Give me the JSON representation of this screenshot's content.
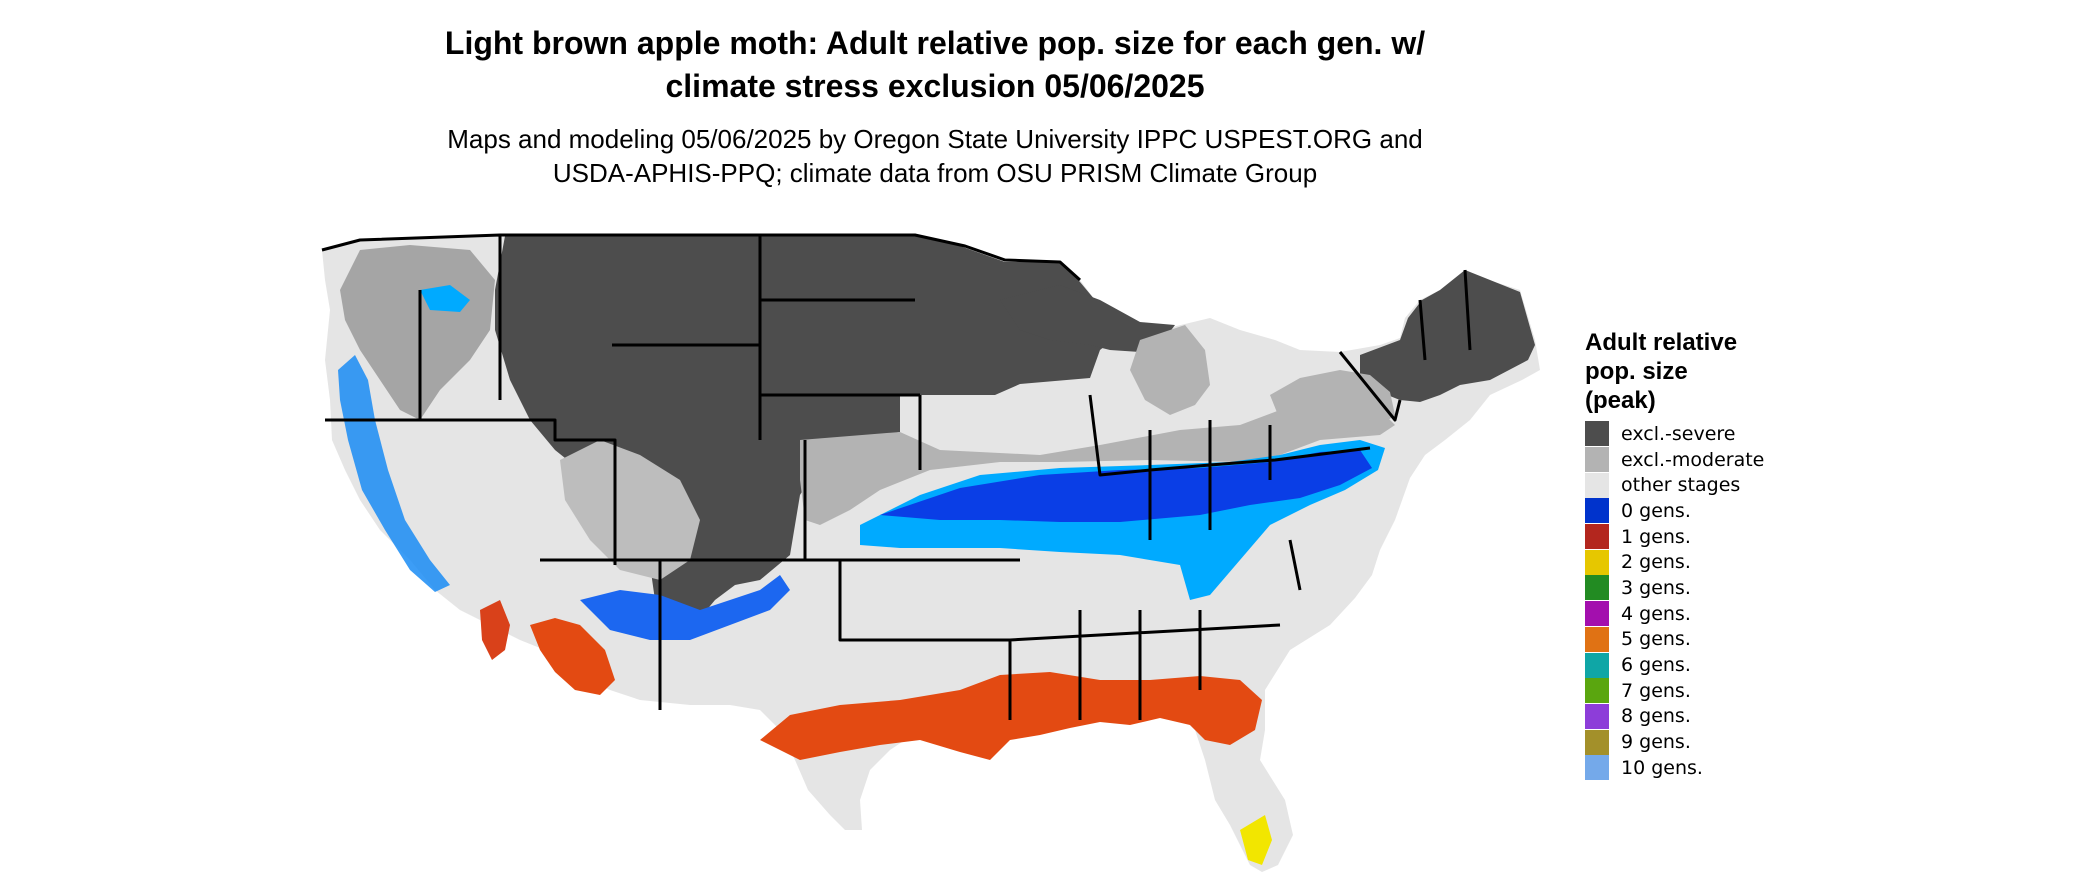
{
  "title_line1": "Light brown apple moth: Adult relative pop. size for each gen. w/",
  "title_line2": "climate stress exclusion 05/06/2025",
  "subtitle_line1": "Maps and modeling 05/06/2025 by Oregon State University IPPC USPEST.ORG and",
  "subtitle_line2": "USDA-APHIS-PPQ; climate data from OSU PRISM Climate Group",
  "legend": {
    "title_line1": "Adult relative",
    "title_line2": "pop. size",
    "title_line3": "(peak)",
    "items": [
      {
        "label": "excl.-severe",
        "color": "#4d4d4d"
      },
      {
        "label": "excl.-moderate",
        "color": "#b3b3b3"
      },
      {
        "label": "other stages",
        "color": "#e5e5e5"
      },
      {
        "label": "0 gens.",
        "color": "#0033cc"
      },
      {
        "label": "1 gens.",
        "color": "#b3261e"
      },
      {
        "label": "2 gens.",
        "color": "#e6c700"
      },
      {
        "label": "3 gens.",
        "color": "#228b22"
      },
      {
        "label": "4 gens.",
        "color": "#a30fae"
      },
      {
        "label": "5 gens.",
        "color": "#e07214"
      },
      {
        "label": "6 gens.",
        "color": "#0fa6a6"
      },
      {
        "label": "7 gens.",
        "color": "#5aa60f"
      },
      {
        "label": "8 gens.",
        "color": "#8d3dd9"
      },
      {
        "label": "9 gens.",
        "color": "#a3902a"
      },
      {
        "label": "10 gens.",
        "color": "#74a9ea"
      }
    ]
  },
  "map_colors": {
    "excl_severe": "#4d4d4d",
    "excl_moderate": "#b3b3b3",
    "other_stages": "#e5e5e5",
    "gen0": "#0a3ee6",
    "gen0_light": "#00aaff",
    "gen1": "#e34a12",
    "gen2": "#f2e600"
  }
}
